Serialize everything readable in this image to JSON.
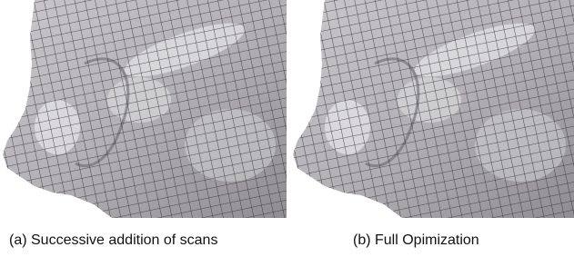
{
  "figures": [
    {
      "caption": "(a) Successive addition of scans"
    },
    {
      "caption": "(b) Full Opimization"
    }
  ]
}
